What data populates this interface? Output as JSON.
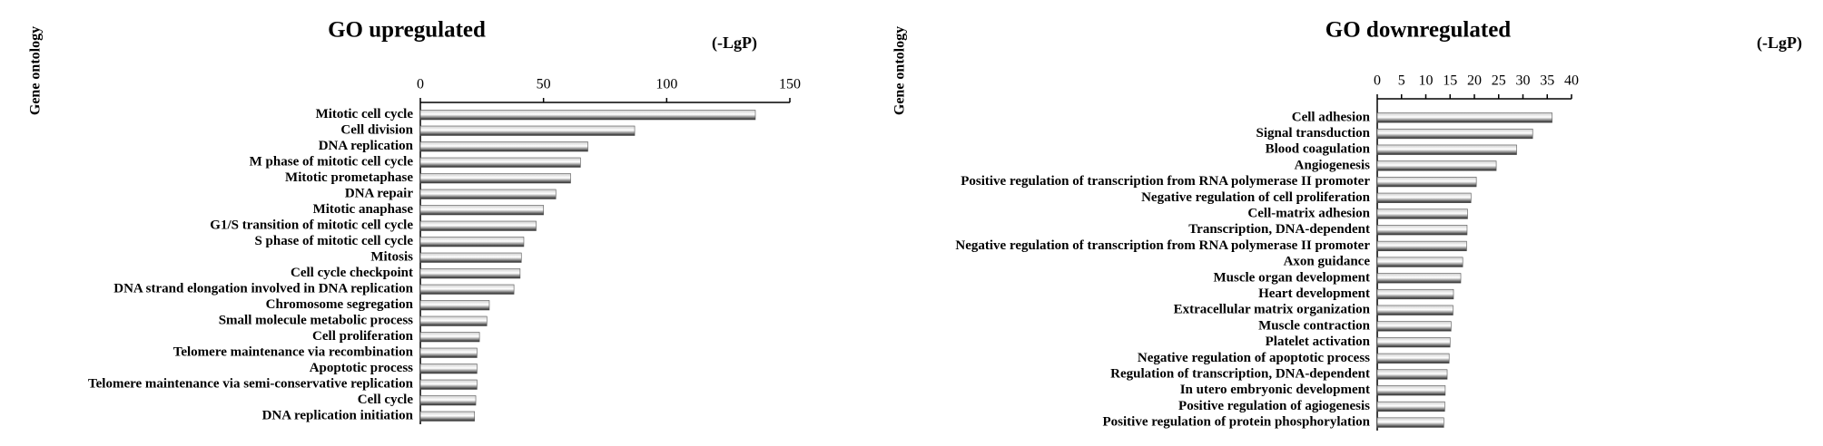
{
  "chart_data": [
    {
      "type": "bar",
      "orientation": "horizontal",
      "title": "GO upregulated",
      "x_label": "(-LgP)",
      "y_label": "Gene ontology",
      "categories": [
        "Mitotic cell cycle",
        "Cell division",
        "DNA replication",
        "M phase of mitotic cell cycle",
        "Mitotic prometaphase",
        "DNA repair",
        "Mitotic anaphase",
        "G1/S transition of mitotic cell cycle",
        "S phase of mitotic cell cycle",
        "Mitosis",
        "Cell cycle checkpoint",
        "DNA strand elongation involved in DNA replication",
        "Chromosome segregation",
        "Small molecule metabolic process",
        "Cell proliferation",
        "Telomere maintenance via recombination",
        "Apoptotic process",
        "Telomere maintenance via semi-conservative replication",
        "Cell cycle",
        "DNA replication initiation"
      ],
      "values": [
        136,
        87,
        68,
        65,
        61,
        55,
        50,
        47,
        42,
        41,
        40.5,
        38,
        28,
        27,
        24,
        23,
        23,
        23,
        22.5,
        22
      ],
      "xlim": [
        0,
        150
      ],
      "xticks": [
        0,
        50,
        100,
        150
      ],
      "color": "#555555"
    },
    {
      "type": "bar",
      "orientation": "horizontal",
      "title": "GO downregulated",
      "x_label": "(-LgP)",
      "y_label": "Gene ontology",
      "categories": [
        "Cell adhesion",
        "Signal transduction",
        "Blood coagulation",
        "Angiogenesis",
        "Positive regulation of transcription from RNA polymerase II promoter",
        "Negative regulation of cell proliferation",
        "Cell-matrix adhesion",
        "Transcription, DNA-dependent",
        "Negative regulation of transcription from RNA polymerase II promoter",
        "Axon guidance",
        "Muscle organ development",
        "Heart development",
        "Extracellular matrix organization",
        "Muscle contraction",
        "Platelet activation",
        "Negative regulation of apoptotic process",
        "Regulation of transcription, DNA-dependent",
        "In utero embryonic development",
        "Positive regulation of agiogenesis",
        "Positive regulation of protein phosphorylation"
      ],
      "values": [
        36,
        32,
        28.7,
        24.5,
        20.4,
        19.3,
        18.6,
        18.5,
        18.4,
        17.6,
        17.2,
        15.7,
        15.6,
        15.2,
        15,
        14.8,
        14.4,
        14,
        13.9,
        13.7
      ],
      "xlim": [
        0,
        40
      ],
      "xticks": [
        0,
        5,
        10,
        15,
        20,
        25,
        30,
        35,
        40
      ],
      "color": "#555555"
    }
  ]
}
